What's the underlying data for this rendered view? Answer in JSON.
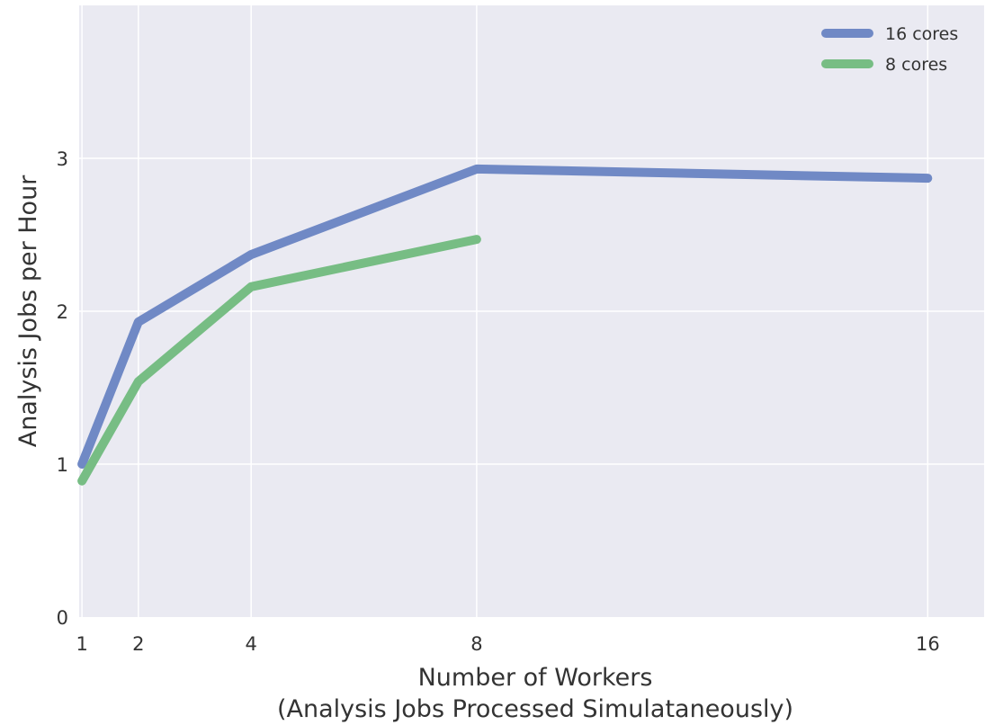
{
  "chart_data": {
    "type": "line",
    "x": [
      1,
      2,
      4,
      8,
      16
    ],
    "xticks": [
      "1",
      "2",
      "4",
      "8",
      "16"
    ],
    "yticks": [
      "0",
      "1",
      "2",
      "3"
    ],
    "xlim": [
      0.95,
      17.0
    ],
    "ylim": [
      0,
      4
    ],
    "xlabel": "Number of Workers",
    "xlabel2": "(Analysis Jobs Processed Simulataneously)",
    "ylabel": "Analysis Jobs per Hour",
    "grid": true,
    "legend_position": "top-right",
    "series": [
      {
        "name": "16 cores",
        "color": "#7089c5",
        "x": [
          1,
          2,
          4,
          8,
          16
        ],
        "values": [
          1.0,
          1.93,
          2.37,
          2.93,
          2.87
        ]
      },
      {
        "name": "8 cores",
        "color": "#77bd84",
        "x": [
          1,
          2,
          4,
          8
        ],
        "values": [
          0.89,
          1.54,
          2.16,
          2.47
        ]
      }
    ]
  },
  "colors": {
    "plot_background": "#eaeaf2",
    "grid": "#ffffff"
  }
}
